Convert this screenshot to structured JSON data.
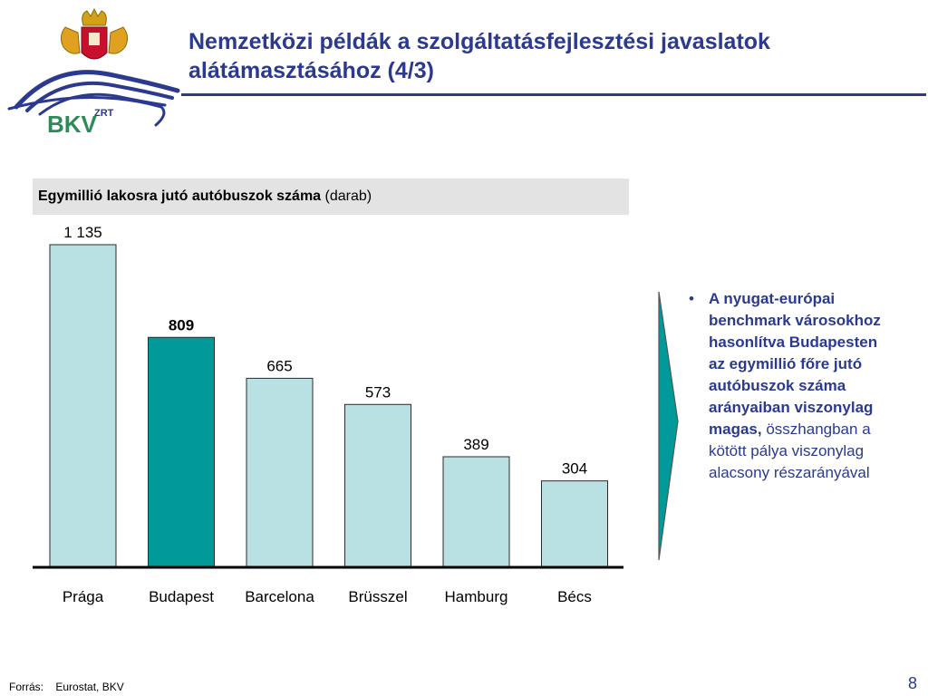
{
  "header": {
    "title_line1": "Nemzetközi példák a szolgáltatásfejlesztési javaslatok",
    "title_line2": "alátámasztásához (4/3)",
    "logo_text": "BKV",
    "logo_sup": "ZRT"
  },
  "chart_header": {
    "bold": "Egymillió lakosra jutó autóbuszok száma",
    "normal": "(darab)"
  },
  "chart_data": {
    "type": "bar",
    "categories": [
      "Prága",
      "Budapest",
      "Barcelona",
      "Brüsszel",
      "Hamburg",
      "Bécs"
    ],
    "values": [
      1135,
      809,
      665,
      573,
      389,
      304
    ],
    "value_labels": [
      "1 135",
      "809",
      "665",
      "573",
      "389",
      "304"
    ],
    "highlight_index": 1,
    "colors": {
      "default": "#b9e0e3",
      "highlight": "#009a9a",
      "border": "#2b2b2b"
    },
    "ylim": [
      0,
      1135
    ],
    "grid": false
  },
  "bullet": {
    "dot": "•",
    "bold_text": "A nyugat-európai benchmark városokhoz hasonlítva Budapesten az egymillió főre jutó autóbuszok száma arányaiban viszonylag magas,",
    "normal_text": "összhangban a kötött pálya viszonylag alacsony részarányával"
  },
  "footer": {
    "source_label": "Forrás:",
    "source_value": "Eurostat, BKV",
    "page_number": "8"
  },
  "colors": {
    "title": "#2b3a8f",
    "accent_teal": "#009a9a",
    "logo_green": "#2e8b57"
  }
}
